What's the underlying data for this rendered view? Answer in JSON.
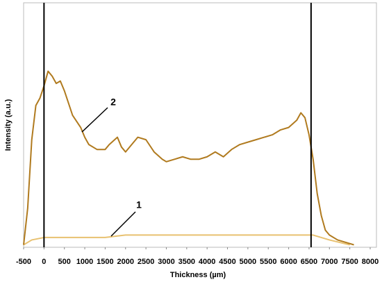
{
  "chart_data": {
    "type": "line",
    "xlabel": "Thickness (µm)",
    "ylabel": "Intensity (a.u.)",
    "xlim": [
      -500,
      8000
    ],
    "ylim": [
      0,
      100
    ],
    "xticks": [
      -500,
      0,
      500,
      1000,
      1500,
      2000,
      2500,
      3000,
      3500,
      4000,
      4500,
      5000,
      5500,
      6000,
      6500,
      7000,
      7500,
      8000
    ],
    "vlines": [
      0,
      6550
    ],
    "annotations": [
      {
        "text": "1"
      },
      {
        "text": "2"
      }
    ],
    "series": [
      {
        "color": "#e8c170",
        "x": [
          -500,
          -300,
          0,
          500,
          1000,
          1500,
          2000,
          2500,
          3000,
          3500,
          4000,
          4500,
          5000,
          5500,
          6000,
          6600,
          7000,
          7500
        ],
        "values": [
          1,
          3,
          4,
          4,
          4,
          4,
          5,
          5,
          5,
          5,
          5,
          5,
          5,
          5,
          5,
          5,
          3,
          1
        ]
      },
      {
        "color": "#b07a1e",
        "x": [
          -500,
          -400,
          -300,
          -200,
          -100,
          0,
          100,
          200,
          300,
          400,
          500,
          700,
          900,
          1000,
          1100,
          1300,
          1500,
          1600,
          1800,
          1900,
          2000,
          2200,
          2300,
          2500,
          2700,
          2900,
          3000,
          3200,
          3400,
          3600,
          3800,
          4000,
          4200,
          4400,
          4600,
          4800,
          5000,
          5200,
          5400,
          5600,
          5800,
          6000,
          6200,
          6300,
          6400,
          6500,
          6600,
          6700,
          6800,
          6900,
          7000,
          7200,
          7400,
          7600
        ],
        "values": [
          1,
          16,
          44,
          58,
          61,
          66,
          72,
          70,
          67,
          68,
          64,
          54,
          49,
          45,
          42,
          40,
          40,
          42,
          45,
          41,
          39,
          43,
          45,
          44,
          39,
          36,
          35,
          36,
          37,
          36,
          36,
          37,
          39,
          37,
          40,
          42,
          43,
          44,
          45,
          46,
          48,
          49,
          52,
          55,
          53,
          46,
          36,
          22,
          13,
          7,
          5,
          3,
          2,
          1
        ]
      }
    ]
  }
}
